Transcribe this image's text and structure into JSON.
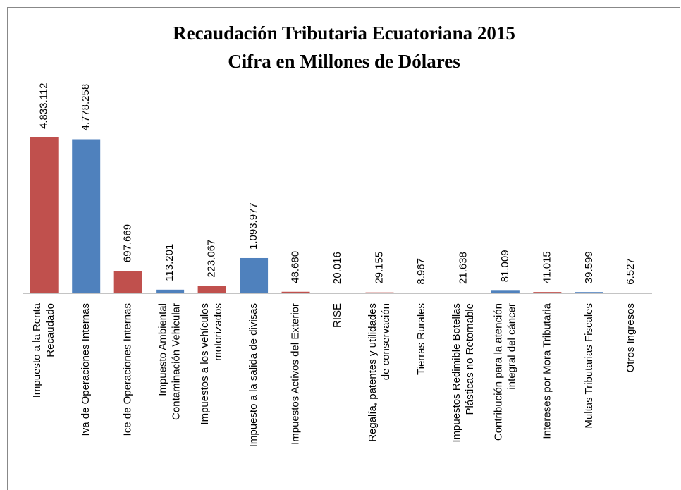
{
  "chart_data": {
    "type": "bar",
    "title": "Recaudación Tributaria Ecuatoriana 2015",
    "subtitle": "Cifra en Millones de Dólares",
    "categories": [
      [
        "Impuesto a la Renta",
        "Recaudado"
      ],
      [
        "Iva de Operaciones Internas"
      ],
      [
        "Ice de Operaciones Internas"
      ],
      [
        "Impuesto Ambiental",
        "Contaminación Vehicular"
      ],
      [
        "Impuestos a los vehículos",
        "motorizados"
      ],
      [
        "Impuesto a la salida de divisas"
      ],
      [
        "Impuestos Activos del Exterior"
      ],
      [
        "RISE"
      ],
      [
        "Regalía, patentes y utilidades",
        "de conservación"
      ],
      [
        "Tierras Rurales"
      ],
      [
        "Impuestos Redimible Botellas",
        "Plásticas no Retornable"
      ],
      [
        "Contribución para la atención",
        "integral del cáncer"
      ],
      [
        "Intereses por Mora Tributaria"
      ],
      [
        "Multas Tributarias Fiscales"
      ],
      [
        "Otros Ingresos"
      ]
    ],
    "values": [
      4833112,
      4778258,
      697669,
      113201,
      223067,
      1093977,
      48680,
      20016,
      29155,
      8967,
      21638,
      81009,
      41015,
      39599,
      6527
    ],
    "value_labels": [
      "4.833.112",
      "4.778.258",
      "697.669",
      "113.201",
      "223.067",
      "1.093.977",
      "48.680",
      "20.016",
      "29.155",
      "8.967",
      "21.638",
      "81.009",
      "41.015",
      "39.599",
      "6.527"
    ],
    "colors": [
      "#c0504d",
      "#4f81bd",
      "#c0504d",
      "#4f81bd",
      "#c0504d",
      "#4f81bd",
      "#c0504d",
      "#4f81bd",
      "#c0504d",
      "#4f81bd",
      "#c0504d",
      "#4f81bd",
      "#c0504d",
      "#4f81bd",
      "#c0504d"
    ]
  }
}
